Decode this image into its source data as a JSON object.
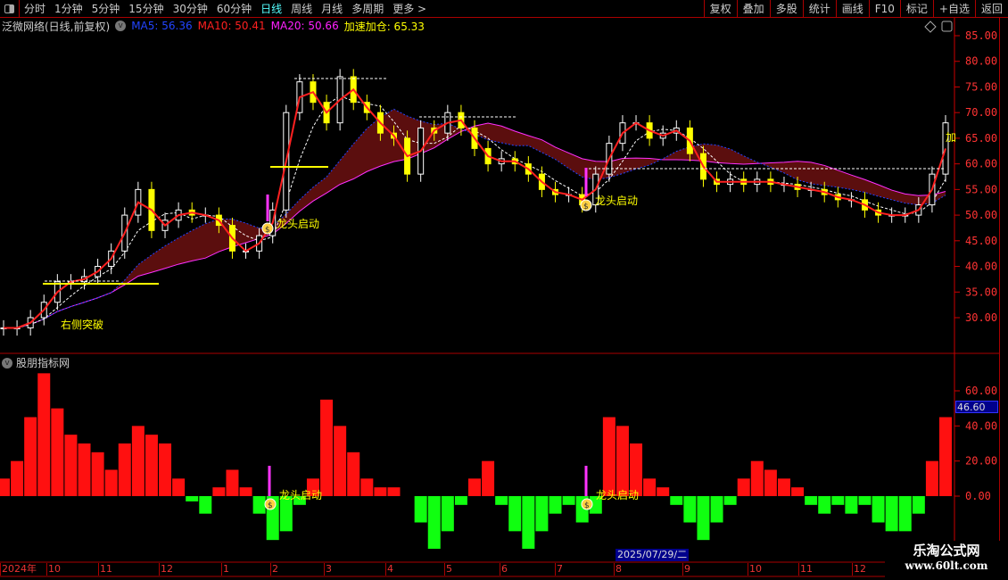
{
  "toolbar": {
    "periods": [
      "分时",
      "1分钟",
      "5分钟",
      "15分钟",
      "30分钟",
      "60分钟",
      "日线",
      "周线",
      "月线",
      "多周期",
      "更多 >"
    ],
    "active": "日线",
    "buttons": [
      "复权",
      "叠加",
      "多股",
      "统计",
      "画线",
      "F10",
      "标记",
      "+自选",
      "返回"
    ]
  },
  "info": {
    "stock": "泛微网络(日线,前复权)",
    "ma5": "MA5: 56.36",
    "ma10": "MA10: 50.41",
    "ma20": "MA20: 50.66",
    "accel": "加速加仓: 65.33",
    "colors": {
      "ma5": "#2244ff",
      "ma10": "#ff2020",
      "ma20": "#ff20ff",
      "accel": "#ffff00"
    }
  },
  "subpanel": {
    "title": "股朋指标网",
    "cursor_value": "46.60"
  },
  "y_ticks_main": [
    "85.00",
    "80.00",
    "75.00",
    "70.00",
    "65.00",
    "60.00",
    "55.00",
    "50.00",
    "45.00",
    "40.00",
    "35.00",
    "30.00"
  ],
  "y_ticks_sub": [
    "60.00",
    "40.00",
    "20.00",
    "0.00"
  ],
  "annotations": {
    "breakout": "右侧突破",
    "leader1": "龙头启动",
    "leader2": "龙头启动",
    "leader3": "龙头启动",
    "leader4": "龙头启动",
    "accel_tag": "加"
  },
  "dates": [
    "2024年",
    "10",
    "11",
    "12",
    "1",
    "2",
    "3",
    "4",
    "5",
    "6",
    "7",
    "8",
    "9",
    "10",
    "11",
    "12"
  ],
  "cursor_date": "2025/07/29/二",
  "watermark": {
    "name": "乐淘公式网",
    "url": "www.60lt.com"
  },
  "chart_data": {
    "type": "candlestick",
    "closes": [
      28,
      28,
      30,
      33,
      37,
      37,
      38,
      40,
      43,
      50,
      55,
      47,
      49,
      51,
      50,
      50,
      48,
      43,
      43,
      46,
      51,
      70,
      76,
      72,
      68,
      77,
      72,
      70,
      66,
      65,
      58,
      67,
      66,
      70,
      67,
      63,
      60,
      61,
      60,
      58,
      55,
      54,
      54,
      52,
      58,
      64,
      68,
      68,
      65,
      66,
      67,
      62,
      57,
      56,
      57,
      56,
      57,
      56,
      56,
      55,
      55,
      54,
      53,
      53,
      51,
      50,
      50,
      50,
      52,
      58,
      68
    ],
    "indicator": [
      10,
      20,
      45,
      70,
      50,
      35,
      30,
      25,
      15,
      30,
      40,
      35,
      30,
      10,
      -3,
      -10,
      5,
      15,
      5,
      -10,
      -25,
      -20,
      -5,
      10,
      55,
      40,
      25,
      10,
      5,
      5,
      0,
      -15,
      -30,
      -20,
      -5,
      10,
      20,
      -5,
      -20,
      -30,
      -20,
      -10,
      -5,
      -15,
      -10,
      45,
      40,
      30,
      10,
      5,
      -5,
      -15,
      -25,
      -15,
      -5,
      10,
      20,
      15,
      10,
      5,
      -5,
      -10,
      -5,
      -10,
      -5,
      -15,
      -20,
      -20,
      -10,
      20,
      45
    ],
    "ylim": [
      30,
      85
    ],
    "ylim_sub": [
      -20,
      60
    ]
  }
}
